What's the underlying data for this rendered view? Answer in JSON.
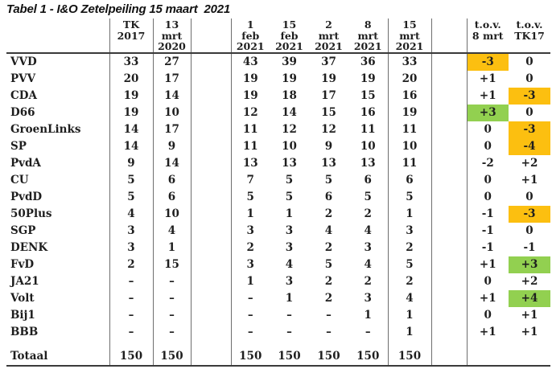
{
  "title": "Tabel 1 - I&O Zetelpeiling 15 maart  2021",
  "colors": {
    "highlight_orange": "#FCBF10",
    "highlight_green": "#92D050",
    "text": "#1E1E1E",
    "grid_line": "#6E6E6E",
    "rule_line": "#3A3A3A"
  },
  "table": {
    "headers": {
      "party": "",
      "tk2017": "TK\n2017",
      "mrt13_2020": "13\nmrt\n2020",
      "feb1_2021": "1\nfeb\n2021",
      "feb15_2021": "15\nfeb\n2021",
      "mrt2_2021": "2\nmrt\n2021",
      "mrt8_2021": "8\nmrt\n2021",
      "mrt15_2021": "15\nmrt\n2021",
      "tov_8mrt": "t.o.v.\n8 mrt",
      "tov_tk17": "t.o.v.\nTK17"
    },
    "rows": [
      {
        "party": "VVD",
        "tk2017": "33",
        "mrt13_2020": "27",
        "feb1_2021": "43",
        "feb15_2021": "39",
        "mrt2_2021": "37",
        "mrt8_2021": "36",
        "mrt15_2021": "33",
        "tov_8mrt": "-3",
        "tov_tk17": "0",
        "hl_8mrt": "orange",
        "hl_tk17": ""
      },
      {
        "party": "PVV",
        "tk2017": "20",
        "mrt13_2020": "17",
        "feb1_2021": "19",
        "feb15_2021": "19",
        "mrt2_2021": "19",
        "mrt8_2021": "19",
        "mrt15_2021": "20",
        "tov_8mrt": "+1",
        "tov_tk17": "0",
        "hl_8mrt": "",
        "hl_tk17": ""
      },
      {
        "party": "CDA",
        "tk2017": "19",
        "mrt13_2020": "14",
        "feb1_2021": "19",
        "feb15_2021": "18",
        "mrt2_2021": "17",
        "mrt8_2021": "15",
        "mrt15_2021": "16",
        "tov_8mrt": "+1",
        "tov_tk17": "-3",
        "hl_8mrt": "",
        "hl_tk17": "orange"
      },
      {
        "party": "D66",
        "tk2017": "19",
        "mrt13_2020": "10",
        "feb1_2021": "12",
        "feb15_2021": "14",
        "mrt2_2021": "15",
        "mrt8_2021": "16",
        "mrt15_2021": "19",
        "tov_8mrt": "+3",
        "tov_tk17": "0",
        "hl_8mrt": "green",
        "hl_tk17": ""
      },
      {
        "party": "GroenLinks",
        "tk2017": "14",
        "mrt13_2020": "17",
        "feb1_2021": "11",
        "feb15_2021": "12",
        "mrt2_2021": "12",
        "mrt8_2021": "11",
        "mrt15_2021": "11",
        "tov_8mrt": "0",
        "tov_tk17": "-3",
        "hl_8mrt": "",
        "hl_tk17": "orange"
      },
      {
        "party": "SP",
        "tk2017": "14",
        "mrt13_2020": "9",
        "feb1_2021": "11",
        "feb15_2021": "10",
        "mrt2_2021": "9",
        "mrt8_2021": "10",
        "mrt15_2021": "10",
        "tov_8mrt": "0",
        "tov_tk17": "-4",
        "hl_8mrt": "",
        "hl_tk17": "orange"
      },
      {
        "party": "PvdA",
        "tk2017": "9",
        "mrt13_2020": "14",
        "feb1_2021": "13",
        "feb15_2021": "13",
        "mrt2_2021": "13",
        "mrt8_2021": "13",
        "mrt15_2021": "11",
        "tov_8mrt": "-2",
        "tov_tk17": "+2",
        "hl_8mrt": "",
        "hl_tk17": ""
      },
      {
        "party": "CU",
        "tk2017": "5",
        "mrt13_2020": "6",
        "feb1_2021": "7",
        "feb15_2021": "5",
        "mrt2_2021": "5",
        "mrt8_2021": "6",
        "mrt15_2021": "6",
        "tov_8mrt": "0",
        "tov_tk17": "+1",
        "hl_8mrt": "",
        "hl_tk17": ""
      },
      {
        "party": "PvdD",
        "tk2017": "5",
        "mrt13_2020": "6",
        "feb1_2021": "5",
        "feb15_2021": "5",
        "mrt2_2021": "6",
        "mrt8_2021": "5",
        "mrt15_2021": "5",
        "tov_8mrt": "0",
        "tov_tk17": "0",
        "hl_8mrt": "",
        "hl_tk17": ""
      },
      {
        "party": "50Plus",
        "tk2017": "4",
        "mrt13_2020": "10",
        "feb1_2021": "1",
        "feb15_2021": "1",
        "mrt2_2021": "2",
        "mrt8_2021": "2",
        "mrt15_2021": "1",
        "tov_8mrt": "-1",
        "tov_tk17": "-3",
        "hl_8mrt": "",
        "hl_tk17": "orange"
      },
      {
        "party": "SGP",
        "tk2017": "3",
        "mrt13_2020": "4",
        "feb1_2021": "3",
        "feb15_2021": "3",
        "mrt2_2021": "4",
        "mrt8_2021": "4",
        "mrt15_2021": "3",
        "tov_8mrt": "-1",
        "tov_tk17": "0",
        "hl_8mrt": "",
        "hl_tk17": ""
      },
      {
        "party": "DENK",
        "tk2017": "3",
        "mrt13_2020": "1",
        "feb1_2021": "2",
        "feb15_2021": "3",
        "mrt2_2021": "2",
        "mrt8_2021": "3",
        "mrt15_2021": "2",
        "tov_8mrt": "-1",
        "tov_tk17": "-1",
        "hl_8mrt": "",
        "hl_tk17": ""
      },
      {
        "party": "FvD",
        "tk2017": "2",
        "mrt13_2020": "15",
        "feb1_2021": "3",
        "feb15_2021": "4",
        "mrt2_2021": "5",
        "mrt8_2021": "4",
        "mrt15_2021": "5",
        "tov_8mrt": "+1",
        "tov_tk17": "+3",
        "hl_8mrt": "",
        "hl_tk17": "green"
      },
      {
        "party": "JA21",
        "tk2017": "–",
        "mrt13_2020": "–",
        "feb1_2021": "1",
        "feb15_2021": "3",
        "mrt2_2021": "2",
        "mrt8_2021": "2",
        "mrt15_2021": "2",
        "tov_8mrt": "0",
        "tov_tk17": "+2",
        "hl_8mrt": "",
        "hl_tk17": ""
      },
      {
        "party": "Volt",
        "tk2017": "–",
        "mrt13_2020": "–",
        "feb1_2021": "–",
        "feb15_2021": "1",
        "mrt2_2021": "2",
        "mrt8_2021": "3",
        "mrt15_2021": "4",
        "tov_8mrt": "+1",
        "tov_tk17": "+4",
        "hl_8mrt": "",
        "hl_tk17": "green"
      },
      {
        "party": "Bij1",
        "tk2017": "–",
        "mrt13_2020": "–",
        "feb1_2021": "–",
        "feb15_2021": "–",
        "mrt2_2021": "–",
        "mrt8_2021": "1",
        "mrt15_2021": "1",
        "tov_8mrt": "0",
        "tov_tk17": "+1",
        "hl_8mrt": "",
        "hl_tk17": ""
      },
      {
        "party": "BBB",
        "tk2017": "–",
        "mrt13_2020": "–",
        "feb1_2021": "–",
        "feb15_2021": "–",
        "mrt2_2021": "–",
        "mrt8_2021": "–",
        "mrt15_2021": "1",
        "tov_8mrt": "+1",
        "tov_tk17": "+1",
        "hl_8mrt": "",
        "hl_tk17": ""
      },
      {
        "party": "Totaal",
        "tk2017": "150",
        "mrt13_2020": "150",
        "feb1_2021": "150",
        "feb15_2021": "150",
        "mrt2_2021": "150",
        "mrt8_2021": "150",
        "mrt15_2021": "150",
        "tov_8mrt": "",
        "tov_tk17": "",
        "hl_8mrt": "",
        "hl_tk17": "",
        "total": true
      }
    ]
  }
}
